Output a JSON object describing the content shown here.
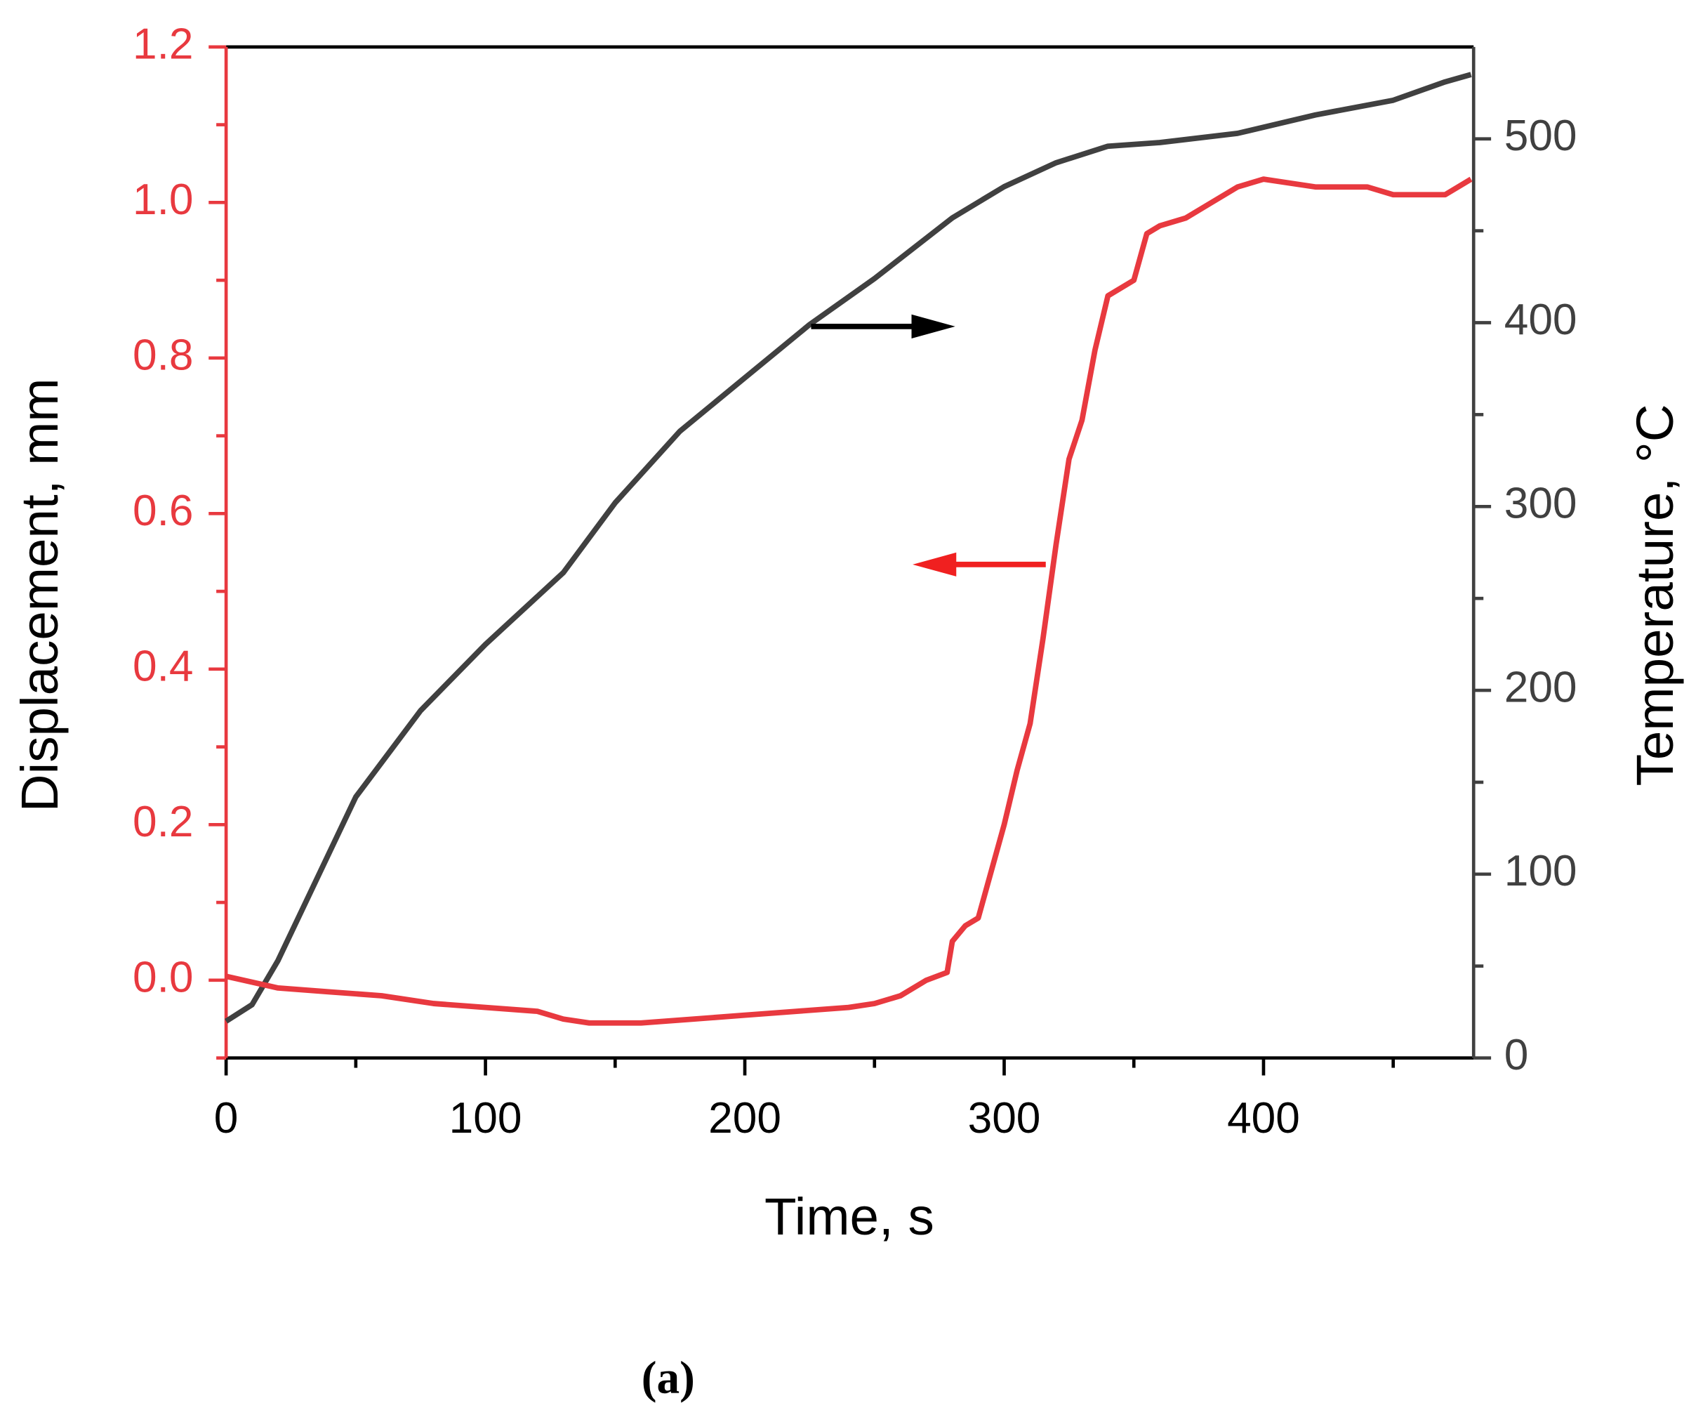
{
  "chart_data": {
    "type": "line",
    "xlabel": "Time, s",
    "ylabel": "Displacement, mm",
    "y2label": "Temperature, °C",
    "caption": "(a)",
    "xlim": [
      0,
      481
    ],
    "xticks": [
      0,
      100,
      200,
      300,
      400
    ],
    "xminorticks": [
      50,
      150,
      250,
      350,
      450
    ],
    "ylim": [
      -0.1,
      1.2
    ],
    "yticks": [
      {
        "value": 0,
        "label": "0.0"
      },
      0.2,
      0.4,
      0.6,
      0.8,
      {
        "value": 1,
        "label": "1.0"
      },
      1.2
    ],
    "yminorticks": [
      -0.1,
      0.1,
      0.3,
      0.5,
      0.7,
      0.9,
      1.1
    ],
    "y2lim": [
      0,
      550
    ],
    "y2ticks": [
      0,
      100,
      200,
      300,
      400,
      500
    ],
    "y2minorticks": [
      50,
      150,
      250,
      350,
      450
    ],
    "yaxis_color": "#e8393f",
    "y2axis_color": "#404040",
    "series": [
      {
        "name": "Temperature",
        "color": "#404040",
        "axis": "y2",
        "x": [
          0,
          10,
          20,
          50,
          75,
          100,
          130,
          150,
          175,
          200,
          225,
          250,
          280,
          300,
          320,
          340,
          360,
          390,
          420,
          450,
          470,
          480
        ],
        "values": [
          20,
          29,
          53,
          142,
          189,
          225,
          264,
          302,
          341,
          370,
          399,
          424,
          457,
          474,
          487,
          496,
          498,
          503,
          513,
          521,
          531,
          535
        ]
      },
      {
        "name": "Displacement",
        "color": "#e8393f",
        "axis": "y",
        "x": [
          0,
          20,
          40,
          60,
          80,
          100,
          120,
          130,
          140,
          160,
          180,
          200,
          220,
          240,
          250,
          260,
          270,
          278,
          280,
          285,
          290,
          295,
          300,
          305,
          310,
          315,
          320,
          325,
          330,
          335,
          340,
          350,
          355,
          360,
          370,
          380,
          390,
          400,
          420,
          440,
          450,
          470,
          480
        ],
        "values": [
          0.005,
          -0.01,
          -0.015,
          -0.02,
          -0.03,
          -0.035,
          -0.04,
          -0.05,
          -0.055,
          -0.055,
          -0.05,
          -0.045,
          -0.04,
          -0.035,
          -0.03,
          -0.02,
          0.0,
          0.01,
          0.05,
          0.07,
          0.08,
          0.14,
          0.2,
          0.27,
          0.33,
          0.44,
          0.56,
          0.67,
          0.72,
          0.81,
          0.88,
          0.9,
          0.96,
          0.97,
          0.98,
          1.0,
          1.02,
          1.03,
          1.02,
          1.02,
          1.01,
          1.01,
          1.03
        ]
      }
    ]
  }
}
